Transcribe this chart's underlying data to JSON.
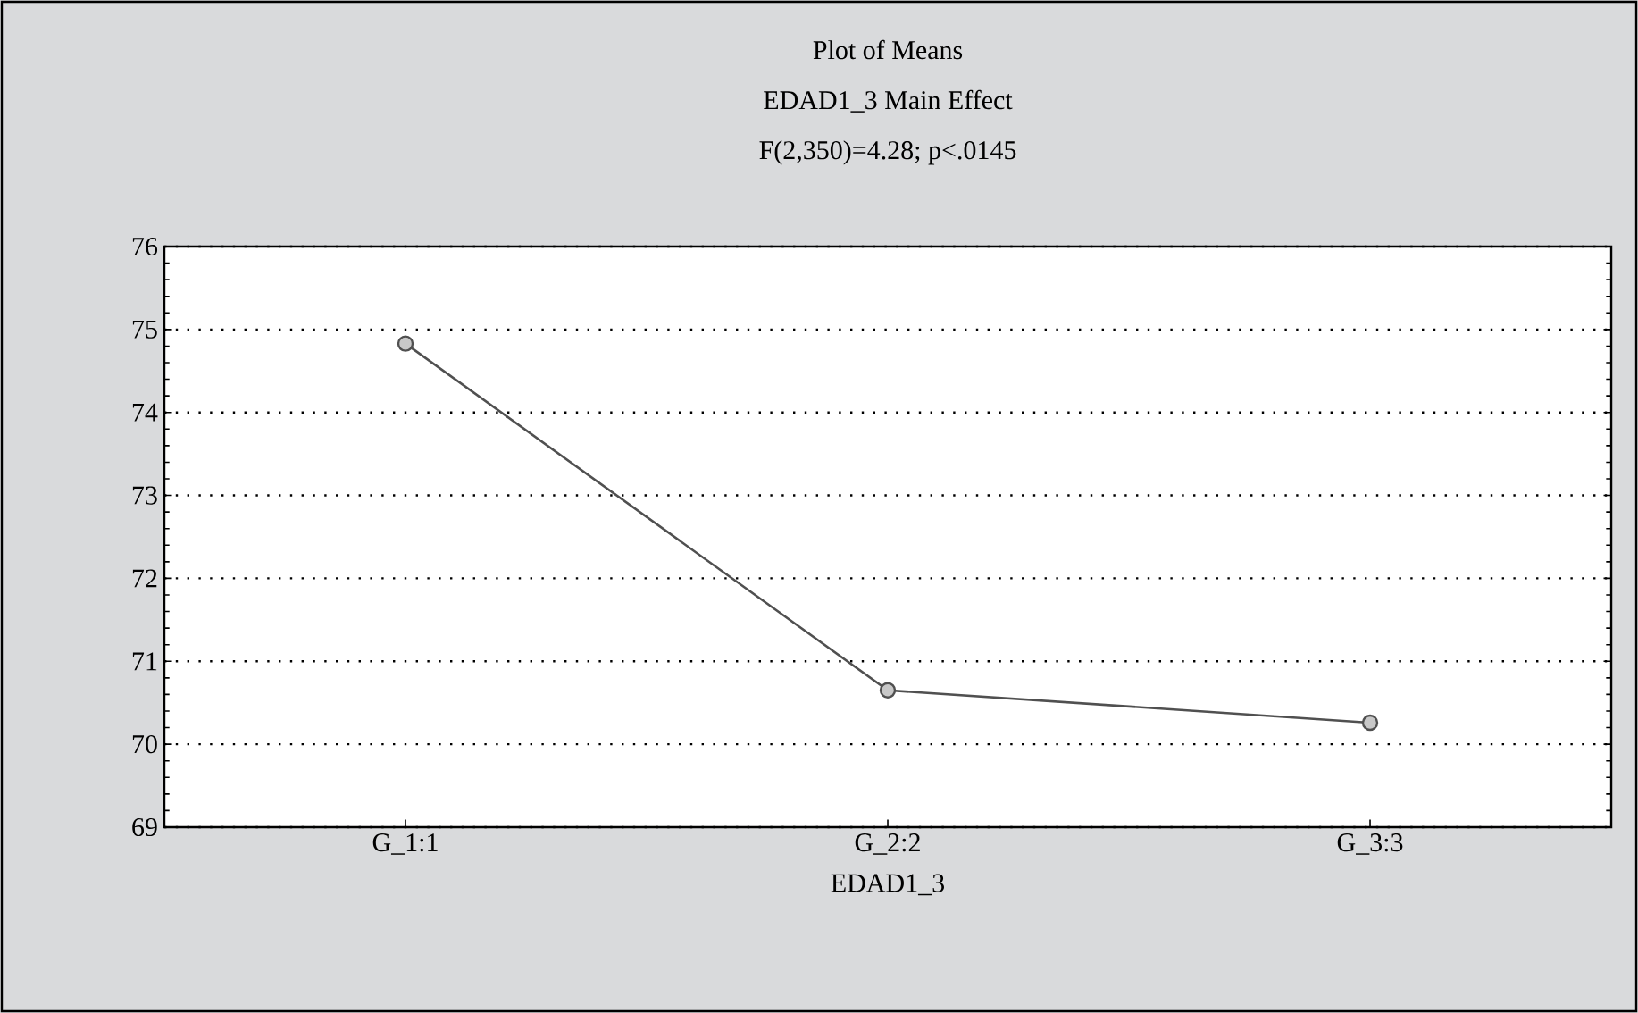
{
  "chart_data": {
    "type": "line",
    "title": "Plot of Means",
    "subtitle": "EDAD1_3 Main Effect",
    "annotations": [
      "F(2,350)=4.28; p<.0145"
    ],
    "xlabel": "EDAD1_3",
    "categories": [
      "G_1:1",
      "G_2:2",
      "G_3:3"
    ],
    "series": [
      {
        "color": "#505050",
        "values": [
          74.83,
          70.65,
          70.26
        ]
      }
    ],
    "ylim": [
      69,
      76
    ],
    "yticks": [
      69,
      70,
      71,
      72,
      73,
      74,
      75,
      76
    ],
    "grid": "y",
    "marker": "circle",
    "line_style": "solid"
  }
}
